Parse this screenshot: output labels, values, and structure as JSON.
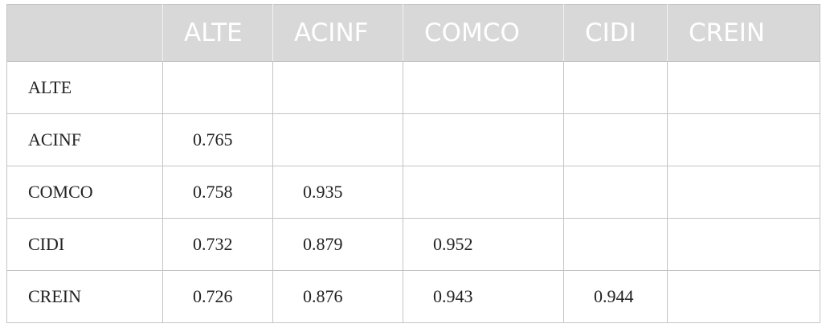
{
  "table": {
    "columns": [
      "ALTE",
      "ACINF",
      "COMCO",
      "CIDI",
      "CREIN"
    ],
    "rows": [
      [
        "ALTE",
        null,
        null,
        null,
        null,
        null
      ],
      [
        "ACINF",
        0.765,
        null,
        null,
        null,
        null
      ],
      [
        "COMCO",
        0.758,
        0.935,
        null,
        null,
        null
      ],
      [
        "CIDI",
        0.732,
        0.879,
        0.952,
        null,
        null
      ],
      [
        "CREIN",
        0.726,
        0.876,
        0.943,
        0.944,
        null
      ]
    ]
  }
}
